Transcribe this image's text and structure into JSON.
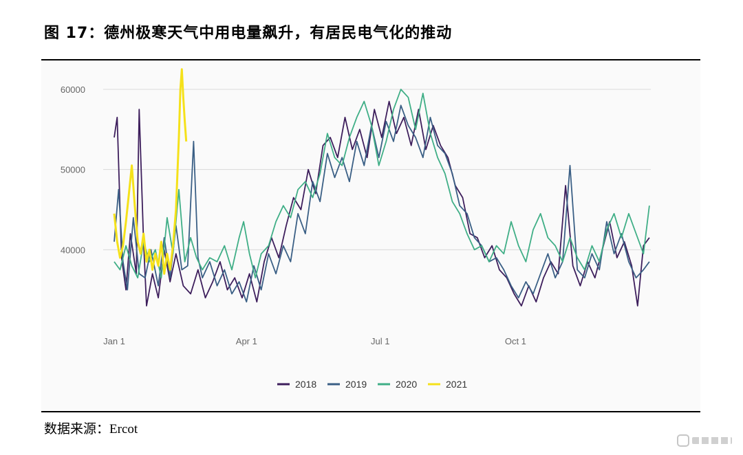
{
  "header": {
    "title": "图 17：德州极寒天气中用电量飙升，有居民电气化的推动"
  },
  "footer": {
    "source_label": "数据来源：",
    "source_name": "Ercot"
  },
  "chart_data": {
    "type": "line",
    "title": "",
    "xlabel": "",
    "ylabel": "",
    "ylim": [
      30000,
      63000
    ],
    "yticks": [
      40000,
      50000,
      60000
    ],
    "ytick_labels": [
      "40000",
      "50000",
      "60000"
    ],
    "xlim_days": [
      0,
      365
    ],
    "xticks": [
      {
        "label": "Jan 1",
        "day": 0
      },
      {
        "label": "Apr 1",
        "day": 90
      },
      {
        "label": "Jul 1",
        "day": 181
      },
      {
        "label": "Oct 1",
        "day": 273
      }
    ],
    "grid": "horizontal",
    "legend_position": "bottom-center",
    "colors": {
      "2018": "#3d1e5c",
      "2019": "#3a5f85",
      "2020": "#3fae86",
      "2021": "#f5e11a"
    },
    "series": [
      {
        "name": "2018",
        "color": "#3d1e5c",
        "points": [
          [
            0,
            54000
          ],
          [
            2,
            56500
          ],
          [
            5,
            39000
          ],
          [
            8,
            35000
          ],
          [
            11,
            42000
          ],
          [
            15,
            37000
          ],
          [
            17,
            57500
          ],
          [
            20,
            41000
          ],
          [
            22,
            33000
          ],
          [
            26,
            37000
          ],
          [
            30,
            34000
          ],
          [
            34,
            40000
          ],
          [
            38,
            36000
          ],
          [
            42,
            39500
          ],
          [
            47,
            35500
          ],
          [
            52,
            34500
          ],
          [
            57,
            37500
          ],
          [
            62,
            34000
          ],
          [
            67,
            36000
          ],
          [
            72,
            38500
          ],
          [
            77,
            35000
          ],
          [
            82,
            36500
          ],
          [
            87,
            34000
          ],
          [
            92,
            37000
          ],
          [
            97,
            33500
          ],
          [
            102,
            38500
          ],
          [
            107,
            41500
          ],
          [
            112,
            39000
          ],
          [
            117,
            43000
          ],
          [
            122,
            46500
          ],
          [
            127,
            45000
          ],
          [
            132,
            50000
          ],
          [
            137,
            47000
          ],
          [
            142,
            53000
          ],
          [
            147,
            54000
          ],
          [
            152,
            51500
          ],
          [
            157,
            56500
          ],
          [
            162,
            52500
          ],
          [
            167,
            55000
          ],
          [
            172,
            51500
          ],
          [
            177,
            57500
          ],
          [
            182,
            54000
          ],
          [
            187,
            58500
          ],
          [
            192,
            54500
          ],
          [
            197,
            56500
          ],
          [
            202,
            53000
          ],
          [
            207,
            57500
          ],
          [
            212,
            52500
          ],
          [
            217,
            55500
          ],
          [
            222,
            53000
          ],
          [
            227,
            51500
          ],
          [
            232,
            48000
          ],
          [
            237,
            46500
          ],
          [
            242,
            42000
          ],
          [
            247,
            41500
          ],
          [
            252,
            39000
          ],
          [
            257,
            40500
          ],
          [
            262,
            37500
          ],
          [
            267,
            36500
          ],
          [
            272,
            34500
          ],
          [
            277,
            33000
          ],
          [
            282,
            35500
          ],
          [
            287,
            33500
          ],
          [
            292,
            36500
          ],
          [
            297,
            38500
          ],
          [
            302,
            37000
          ],
          [
            307,
            48000
          ],
          [
            312,
            38000
          ],
          [
            317,
            35500
          ],
          [
            322,
            38500
          ],
          [
            327,
            36500
          ],
          [
            332,
            40000
          ],
          [
            337,
            43500
          ],
          [
            342,
            39000
          ],
          [
            347,
            41000
          ],
          [
            352,
            38000
          ],
          [
            356,
            33000
          ],
          [
            360,
            40500
          ],
          [
            364,
            41500
          ]
        ]
      },
      {
        "name": "2019",
        "color": "#3a5f85",
        "points": [
          [
            0,
            41000
          ],
          [
            3,
            47500
          ],
          [
            6,
            38500
          ],
          [
            9,
            35000
          ],
          [
            13,
            44000
          ],
          [
            17,
            37000
          ],
          [
            21,
            36500
          ],
          [
            25,
            40000
          ],
          [
            30,
            35500
          ],
          [
            34,
            41500
          ],
          [
            38,
            36500
          ],
          [
            42,
            43000
          ],
          [
            46,
            37500
          ],
          [
            50,
            38000
          ],
          [
            54,
            53500
          ],
          [
            57,
            39000
          ],
          [
            60,
            36500
          ],
          [
            65,
            38500
          ],
          [
            70,
            35500
          ],
          [
            75,
            37500
          ],
          [
            80,
            34500
          ],
          [
            85,
            36000
          ],
          [
            90,
            33500
          ],
          [
            95,
            38000
          ],
          [
            100,
            35000
          ],
          [
            105,
            39500
          ],
          [
            110,
            37000
          ],
          [
            115,
            40500
          ],
          [
            120,
            38500
          ],
          [
            125,
            44500
          ],
          [
            130,
            42000
          ],
          [
            135,
            48500
          ],
          [
            140,
            46000
          ],
          [
            145,
            52000
          ],
          [
            150,
            49000
          ],
          [
            155,
            51500
          ],
          [
            160,
            48500
          ],
          [
            165,
            53500
          ],
          [
            170,
            50500
          ],
          [
            175,
            55500
          ],
          [
            180,
            51500
          ],
          [
            185,
            56000
          ],
          [
            190,
            53500
          ],
          [
            195,
            58000
          ],
          [
            200,
            55500
          ],
          [
            205,
            54000
          ],
          [
            210,
            51500
          ],
          [
            215,
            56500
          ],
          [
            220,
            53000
          ],
          [
            225,
            52000
          ],
          [
            230,
            49500
          ],
          [
            235,
            45500
          ],
          [
            240,
            44500
          ],
          [
            245,
            41500
          ],
          [
            250,
            40500
          ],
          [
            255,
            38500
          ],
          [
            260,
            39000
          ],
          [
            265,
            37500
          ],
          [
            270,
            35500
          ],
          [
            275,
            34000
          ],
          [
            280,
            36000
          ],
          [
            285,
            34500
          ],
          [
            290,
            37000
          ],
          [
            295,
            39500
          ],
          [
            300,
            36500
          ],
          [
            305,
            38500
          ],
          [
            310,
            50500
          ],
          [
            315,
            37500
          ],
          [
            320,
            36500
          ],
          [
            325,
            39500
          ],
          [
            330,
            37500
          ],
          [
            335,
            43500
          ],
          [
            340,
            39500
          ],
          [
            345,
            42000
          ],
          [
            350,
            38500
          ],
          [
            355,
            36500
          ],
          [
            360,
            37500
          ],
          [
            364,
            38500
          ]
        ]
      },
      {
        "name": "2020",
        "color": "#3fae86",
        "points": [
          [
            0,
            38500
          ],
          [
            4,
            37500
          ],
          [
            8,
            40500
          ],
          [
            12,
            38000
          ],
          [
            16,
            36500
          ],
          [
            20,
            41000
          ],
          [
            24,
            38500
          ],
          [
            28,
            40000
          ],
          [
            32,
            36500
          ],
          [
            36,
            44000
          ],
          [
            40,
            39500
          ],
          [
            44,
            47500
          ],
          [
            48,
            38500
          ],
          [
            52,
            41500
          ],
          [
            56,
            39000
          ],
          [
            60,
            37500
          ],
          [
            65,
            39000
          ],
          [
            70,
            38500
          ],
          [
            75,
            40500
          ],
          [
            80,
            37500
          ],
          [
            85,
            41500
          ],
          [
            88,
            43500
          ],
          [
            92,
            39500
          ],
          [
            96,
            36500
          ],
          [
            100,
            39500
          ],
          [
            105,
            40500
          ],
          [
            110,
            43500
          ],
          [
            115,
            45500
          ],
          [
            120,
            44000
          ],
          [
            125,
            47500
          ],
          [
            130,
            48500
          ],
          [
            135,
            46500
          ],
          [
            140,
            49500
          ],
          [
            145,
            54500
          ],
          [
            150,
            51500
          ],
          [
            155,
            50500
          ],
          [
            160,
            54000
          ],
          [
            165,
            56500
          ],
          [
            170,
            58500
          ],
          [
            175,
            55500
          ],
          [
            180,
            50500
          ],
          [
            185,
            53500
          ],
          [
            190,
            57500
          ],
          [
            195,
            60000
          ],
          [
            200,
            59000
          ],
          [
            205,
            55000
          ],
          [
            210,
            59500
          ],
          [
            215,
            54500
          ],
          [
            220,
            51500
          ],
          [
            225,
            49500
          ],
          [
            230,
            46000
          ],
          [
            235,
            44500
          ],
          [
            240,
            42000
          ],
          [
            245,
            40000
          ],
          [
            250,
            40500
          ],
          [
            255,
            38500
          ],
          [
            260,
            40500
          ],
          [
            265,
            39500
          ],
          [
            270,
            43500
          ],
          [
            275,
            40500
          ],
          [
            280,
            38500
          ],
          [
            285,
            42500
          ],
          [
            290,
            44500
          ],
          [
            295,
            41500
          ],
          [
            300,
            40500
          ],
          [
            305,
            38500
          ],
          [
            310,
            41500
          ],
          [
            315,
            39000
          ],
          [
            320,
            37500
          ],
          [
            325,
            40500
          ],
          [
            330,
            38500
          ],
          [
            335,
            42500
          ],
          [
            340,
            44500
          ],
          [
            345,
            41500
          ],
          [
            350,
            44500
          ],
          [
            355,
            42000
          ],
          [
            360,
            39500
          ],
          [
            364,
            45500
          ]
        ]
      },
      {
        "name": "2021",
        "color": "#f5e11a",
        "points": [
          [
            0,
            44500
          ],
          [
            2,
            41000
          ],
          [
            4,
            39000
          ],
          [
            6,
            40500
          ],
          [
            8,
            43500
          ],
          [
            10,
            47000
          ],
          [
            12,
            50500
          ],
          [
            14,
            45500
          ],
          [
            16,
            41000
          ],
          [
            18,
            39500
          ],
          [
            20,
            42000
          ],
          [
            22,
            38500
          ],
          [
            24,
            40000
          ],
          [
            26,
            37500
          ],
          [
            28,
            39500
          ],
          [
            30,
            38000
          ],
          [
            32,
            41000
          ],
          [
            34,
            37000
          ],
          [
            36,
            39500
          ],
          [
            38,
            37500
          ],
          [
            40,
            40500
          ],
          [
            42,
            45000
          ],
          [
            43,
            49500
          ],
          [
            44,
            54000
          ],
          [
            45,
            60000
          ],
          [
            46,
            62500
          ],
          [
            47,
            59000
          ],
          [
            48,
            56000
          ],
          [
            49,
            53500
          ]
        ]
      }
    ]
  }
}
